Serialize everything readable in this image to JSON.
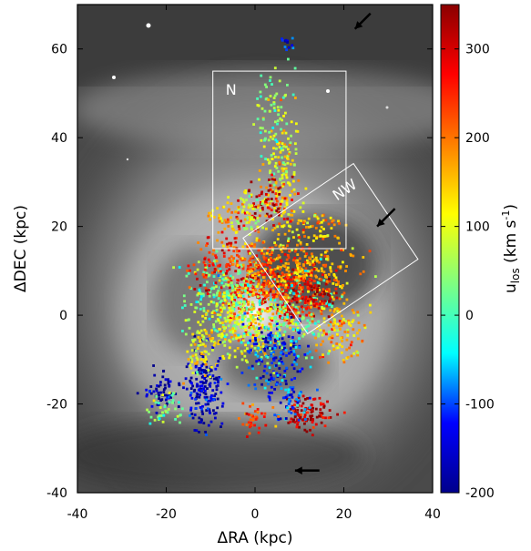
{
  "figure": {
    "x_axis": {
      "label": "ΔRA (kpc)",
      "range": [
        -40,
        40
      ],
      "ticks": [
        -40,
        -20,
        0,
        20,
        40
      ],
      "tick_labels": [
        "-40",
        "-20",
        "0",
        "20",
        "40"
      ]
    },
    "y_axis": {
      "label": "ΔDEC (kpc)",
      "range": [
        -40,
        70
      ],
      "ticks": [
        -40,
        -20,
        0,
        20,
        40,
        60
      ],
      "tick_labels": [
        "-40",
        "-20",
        "0",
        "20",
        "40",
        "60"
      ]
    },
    "colorbar": {
      "label_main": "u",
      "label_sub": "los",
      "label_paren_open": " (km s",
      "label_sup": "-1",
      "label_paren_close": ")",
      "range": [
        -200,
        350
      ],
      "ticks": [
        -200,
        -100,
        0,
        100,
        200,
        300
      ],
      "tick_labels": [
        "-200",
        "-100",
        "0",
        "100",
        "200",
        "300"
      ],
      "colors": [
        "#00008b",
        "#0000ff",
        "#00ffff",
        "#80ff80",
        "#ffff00",
        "#ff8000",
        "#ff0000",
        "#8b0000"
      ]
    },
    "regions": [
      {
        "label": "N",
        "center": [
          5.5,
          35
        ],
        "width": 30,
        "height": 40,
        "angle": 0
      },
      {
        "label": "NW",
        "center": [
          17,
          15
        ],
        "width": 30,
        "height": 26,
        "angle": 34
      }
    ],
    "arrows": [
      {
        "from": [
          26,
          68
        ],
        "to": [
          22.5,
          64.5
        ]
      },
      {
        "from": [
          31.5,
          24
        ],
        "to": [
          27.5,
          20
        ]
      },
      {
        "from": [
          14.5,
          -35
        ],
        "to": [
          9,
          -35
        ]
      }
    ]
  }
}
